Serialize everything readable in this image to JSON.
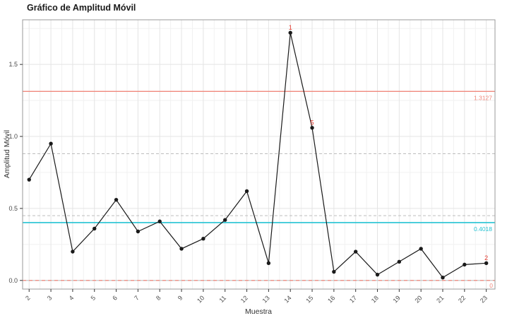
{
  "chart_data": {
    "type": "line",
    "title": "Gráfico de Amplitud Móvil",
    "xlabel": "Muestra",
    "ylabel": "Amplitud Móvil",
    "x": [
      2,
      3,
      4,
      5,
      6,
      7,
      8,
      9,
      10,
      11,
      12,
      13,
      14,
      15,
      16,
      17,
      18,
      19,
      20,
      21,
      22,
      23
    ],
    "values": [
      0.7,
      0.95,
      0.2,
      0.36,
      0.56,
      0.34,
      0.41,
      0.22,
      0.29,
      0.42,
      0.62,
      0.12,
      1.72,
      1.06,
      0.06,
      0.2,
      0.04,
      0.13,
      0.22,
      0.02,
      0.11,
      0.12
    ],
    "xlim": [
      1.7,
      23.4
    ],
    "ylim": [
      -0.06,
      1.81
    ],
    "yticks": [
      0,
      0.5,
      1,
      1.5
    ],
    "ytick_labels": [
      "0.0",
      "0.5",
      "1.0",
      "1.5"
    ],
    "grid": true,
    "legend": false,
    "center_line": {
      "value": 0.4018,
      "label": "0.4018",
      "style": "solid"
    },
    "upper_control_limit": {
      "value": 1.3127,
      "label": "1.3127",
      "style": "solid"
    },
    "lower_control_limit": {
      "value": 0,
      "label": "0",
      "style": "dashed"
    },
    "zone_lines": [
      {
        "value": 0.88,
        "style": "dashed"
      },
      {
        "value": 0.45,
        "style": "dashed"
      }
    ],
    "violations": [
      {
        "x": 14,
        "label": "1"
      },
      {
        "x": 15,
        "label": "5"
      },
      {
        "x": 23,
        "label": "2"
      }
    ],
    "colors": {
      "limit": "#f0897d",
      "limit_label": "#f0897d",
      "center": "#24c3d3",
      "center_label": "#24c3d3",
      "zone": "#bdbdbd",
      "series": "#1a1a1a",
      "violation": "#e4392e",
      "grid_major": "#e4e4e4",
      "grid_minor": "#f1f1f1",
      "zero_line": "#c6c6c6",
      "border": "#999999",
      "tick_text": "#4a4a4a",
      "tick_mark": "#333333"
    }
  }
}
